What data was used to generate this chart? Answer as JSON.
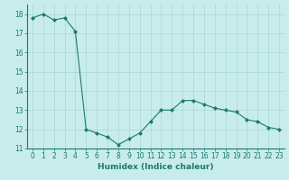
{
  "x": [
    0,
    1,
    2,
    3,
    4,
    5,
    6,
    7,
    8,
    9,
    10,
    11,
    12,
    13,
    14,
    15,
    16,
    17,
    18,
    19,
    20,
    21,
    22,
    23
  ],
  "y": [
    17.8,
    18.0,
    17.7,
    17.8,
    17.1,
    12.0,
    11.8,
    11.6,
    11.2,
    11.5,
    11.8,
    12.4,
    13.0,
    13.0,
    13.5,
    13.5,
    13.3,
    13.1,
    13.0,
    12.9,
    12.5,
    12.4,
    12.1,
    12.0
  ],
  "line_color": "#1a7a6e",
  "marker": "D",
  "marker_size": 2.0,
  "bg_color": "#c8ecec",
  "grid_color": "#a8d8d0",
  "xlabel": "Humidex (Indice chaleur)",
  "ylim": [
    11,
    18.5
  ],
  "xlim": [
    -0.5,
    23.5
  ],
  "yticks": [
    11,
    12,
    13,
    14,
    15,
    16,
    17,
    18
  ],
  "xticks": [
    0,
    1,
    2,
    3,
    4,
    5,
    6,
    7,
    8,
    9,
    10,
    11,
    12,
    13,
    14,
    15,
    16,
    17,
    18,
    19,
    20,
    21,
    22,
    23
  ],
  "xtick_labels": [
    "0",
    "1",
    "2",
    "3",
    "4",
    "5",
    "6",
    "7",
    "8",
    "9",
    "10",
    "11",
    "12",
    "13",
    "14",
    "15",
    "16",
    "17",
    "18",
    "19",
    "20",
    "21",
    "22",
    "23"
  ],
  "label_fontsize": 6.5,
  "tick_fontsize": 5.5
}
